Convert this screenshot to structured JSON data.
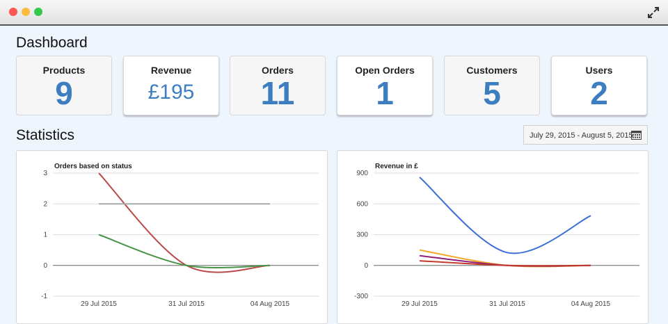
{
  "window": {
    "controls": [
      "close",
      "minimize",
      "zoom"
    ],
    "expand_icon": "expand-icon"
  },
  "page": {
    "title": "Dashboard",
    "stats_title": "Statistics"
  },
  "stats": [
    {
      "label": "Products",
      "value": "9"
    },
    {
      "label": "Revenue",
      "value": "£195"
    },
    {
      "label": "Orders",
      "value": "11"
    },
    {
      "label": "Open Orders",
      "value": "1"
    },
    {
      "label": "Customers",
      "value": "5"
    },
    {
      "label": "Users",
      "value": "2"
    }
  ],
  "daterange": {
    "text": "July 29, 2015 - August 5, 2015",
    "icon": "calendar-icon"
  },
  "colors": {
    "accent": "#3d7ec1",
    "red": "#b94a48",
    "green": "#4a9448",
    "gray": "#a9a9a9",
    "blue": "#3a6fd8",
    "orange": "#f5a623",
    "purple": "#8e1f7a",
    "darkred": "#c0392b"
  },
  "chart_data": [
    {
      "type": "line",
      "title": "Orders based on status",
      "x": [
        "29 Jul 2015",
        "31 Jul 2015",
        "04 Aug 2015"
      ],
      "ylim": [
        -1,
        3
      ],
      "yticks": [
        3,
        2,
        1,
        0,
        -1
      ],
      "grid": true,
      "series": [
        {
          "color": "#b94a48",
          "values": [
            3,
            0,
            0
          ]
        },
        {
          "color": "#a9a9a9",
          "values": [
            2,
            2,
            2
          ]
        },
        {
          "color": "#4a9448",
          "values": [
            1,
            0,
            0
          ]
        }
      ]
    },
    {
      "type": "line",
      "title": "Revenue in £",
      "x": [
        "29 Jul 2015",
        "31 Jul 2015",
        "04 Aug 2015"
      ],
      "ylim": [
        -300,
        900
      ],
      "yticks": [
        900,
        600,
        300,
        0,
        -300
      ],
      "grid": true,
      "series": [
        {
          "color": "#3a6fd8",
          "values": [
            860,
            125,
            485
          ]
        },
        {
          "color": "#f5a623",
          "values": [
            150,
            0,
            0
          ]
        },
        {
          "color": "#8e1f7a",
          "values": [
            95,
            0,
            0
          ]
        },
        {
          "color": "#c0392b",
          "values": [
            45,
            0,
            0
          ]
        }
      ]
    }
  ]
}
